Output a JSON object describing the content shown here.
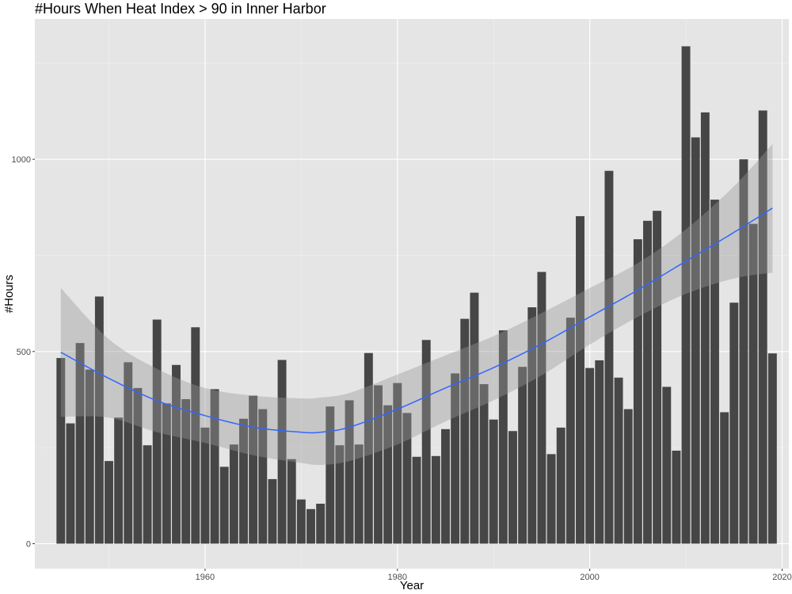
{
  "chart_data": {
    "type": "bar",
    "title": "#Hours When Heat Index > 90 in Inner Harbor",
    "xlabel": "Year",
    "ylabel": "#Hours",
    "xlim": [
      1942.3,
      2020.7
    ],
    "ylim": [
      -65,
      1365
    ],
    "x_ticks": [
      1960,
      1980,
      2000,
      2020
    ],
    "y_ticks": [
      0,
      500,
      1000
    ],
    "x_tick_labels": [
      "1960",
      "1980",
      "2000",
      "2020"
    ],
    "y_tick_labels": [
      "0",
      "500",
      "1000"
    ],
    "grid": true,
    "legend": "none",
    "colors": {
      "panel": "#e5e5e5",
      "bar": "#464646",
      "smooth_line": "#3366ff",
      "confidence_band": "#999999"
    },
    "x": [
      1945,
      1946,
      1947,
      1948,
      1949,
      1950,
      1951,
      1952,
      1953,
      1954,
      1955,
      1956,
      1957,
      1958,
      1959,
      1960,
      1961,
      1962,
      1963,
      1964,
      1965,
      1966,
      1967,
      1968,
      1969,
      1970,
      1971,
      1972,
      1973,
      1974,
      1975,
      1976,
      1977,
      1978,
      1979,
      1980,
      1981,
      1982,
      1983,
      1984,
      1985,
      1986,
      1987,
      1988,
      1989,
      1990,
      1991,
      1992,
      1993,
      1994,
      1995,
      1996,
      1997,
      1998,
      1999,
      2000,
      2001,
      2002,
      2003,
      2004,
      2005,
      2006,
      2007,
      2008,
      2009,
      2010,
      2011,
      2012,
      2013,
      2014,
      2015,
      2016,
      2017,
      2018,
      2019
    ],
    "values": [
      483,
      313,
      522,
      453,
      643,
      215,
      328,
      472,
      405,
      256,
      583,
      365,
      465,
      376,
      563,
      302,
      402,
      200,
      258,
      325,
      385,
      350,
      168,
      478,
      220,
      115,
      90,
      104,
      357,
      256,
      373,
      258,
      496,
      412,
      360,
      418,
      340,
      226,
      530,
      228,
      298,
      443,
      585,
      653,
      415,
      323,
      555,
      293,
      460,
      615,
      707,
      233,
      302,
      588,
      852,
      457,
      477,
      970,
      432,
      350,
      792,
      840,
      866,
      408,
      242,
      1294,
      1057,
      1122,
      895,
      342,
      627,
      1000,
      832,
      1127,
      495
    ],
    "smooth": {
      "x": [
        1945,
        1950,
        1955,
        1960,
        1965,
        1970,
        1972,
        1975,
        1980,
        1985,
        1990,
        1995,
        2000,
        2005,
        2010,
        2015,
        2019
      ],
      "y": [
        498,
        430,
        372,
        333,
        303,
        290,
        290,
        303,
        350,
        405,
        458,
        520,
        590,
        660,
        735,
        810,
        873
      ],
      "ci_lower": [
        330,
        328,
        290,
        262,
        230,
        210,
        205,
        215,
        258,
        318,
        373,
        438,
        518,
        590,
        650,
        690,
        705
      ],
      "ci_upper": [
        665,
        532,
        455,
        405,
        385,
        378,
        380,
        392,
        440,
        490,
        540,
        600,
        665,
        730,
        818,
        930,
        1040
      ]
    }
  }
}
